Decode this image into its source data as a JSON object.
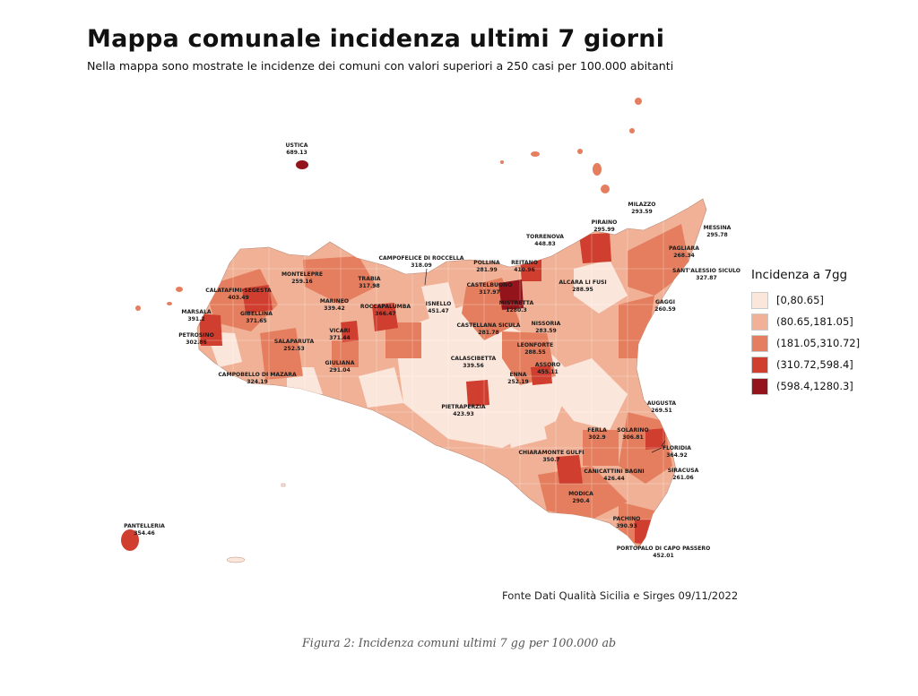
{
  "header": {
    "title": "Mappa comunale incidenza ultimi 7 giorni",
    "subtitle": "Nella mappa sono mostrate le incidenze dei comuni con valori superiori a 250 casi per 100.000 abitanti"
  },
  "legend": {
    "title": "Incidenza a 7gg",
    "classes": [
      {
        "label": "[0,80.65]",
        "color": "#fbe6dc"
      },
      {
        "label": "(80.65,181.05]",
        "color": "#f0b196"
      },
      {
        "label": "(181.05,310.72]",
        "color": "#e57e5e"
      },
      {
        "label": "(310.72,598.4]",
        "color": "#cf3e2e"
      },
      {
        "label": "(598.4,1280.3]",
        "color": "#93141a"
      }
    ]
  },
  "municipalities": [
    {
      "name": "USTICA",
      "value": "689.13"
    },
    {
      "name": "MILAZZO",
      "value": "293.59"
    },
    {
      "name": "PIRAINO",
      "value": "295.99"
    },
    {
      "name": "MESSINA",
      "value": "295.78"
    },
    {
      "name": "TORRENOVA",
      "value": "448.83"
    },
    {
      "name": "PAGLIARA",
      "value": "268.34"
    },
    {
      "name": "CAMPOFELICE DI ROCCELLA",
      "value": "318.09"
    },
    {
      "name": "POLLINA",
      "value": "281.99"
    },
    {
      "name": "REITANO",
      "value": "410.96"
    },
    {
      "name": "SANT'ALESSIO SICULO",
      "value": "327.87"
    },
    {
      "name": "MONTELEPRE",
      "value": "259.16"
    },
    {
      "name": "TRABIA",
      "value": "317.98"
    },
    {
      "name": "CASTELBUONO",
      "value": "317.97"
    },
    {
      "name": "ALCARA LI FUSI",
      "value": "288.95"
    },
    {
      "name": "CALATAFIMI-SEGESTA",
      "value": "403.49"
    },
    {
      "name": "MARINEO",
      "value": "339.42"
    },
    {
      "name": "ROCCAPALUMBA",
      "value": "366.47"
    },
    {
      "name": "ISNELLO",
      "value": "451.47"
    },
    {
      "name": "MISTRETTA",
      "value": "1280.3"
    },
    {
      "name": "GAGGI",
      "value": "260.59"
    },
    {
      "name": "MARSALA",
      "value": "391.2"
    },
    {
      "name": "GIBELLINA",
      "value": "371.65"
    },
    {
      "name": "VICARI",
      "value": "371.44"
    },
    {
      "name": "CASTELLANA SICULA",
      "value": "281.78"
    },
    {
      "name": "NISSORIA",
      "value": "283.59"
    },
    {
      "name": "PETROSINO",
      "value": "302.86"
    },
    {
      "name": "SALAPARUTA",
      "value": "252.53"
    },
    {
      "name": "LEONFORTE",
      "value": "288.55"
    },
    {
      "name": "CALASCIBETTA",
      "value": "339.56"
    },
    {
      "name": "ASSORO",
      "value": "455.11"
    },
    {
      "name": "GIULIANA",
      "value": "291.04"
    },
    {
      "name": "ENNA",
      "value": "252.19"
    },
    {
      "name": "CAMPOBELLO DI MAZARA",
      "value": "324.19"
    },
    {
      "name": "AUGUSTA",
      "value": "269.51"
    },
    {
      "name": "PIETRAPERZIA",
      "value": "423.93"
    },
    {
      "name": "FERLA",
      "value": "302.9"
    },
    {
      "name": "SOLARINO",
      "value": "306.81"
    },
    {
      "name": "FLORIDIA",
      "value": "364.92"
    },
    {
      "name": "CHIARAMONTE GULFI",
      "value": "350.7"
    },
    {
      "name": "SIRACUSA",
      "value": "261.06"
    },
    {
      "name": "CANICATTINI BAGNI",
      "value": "426.44"
    },
    {
      "name": "MODICA",
      "value": "290.4"
    },
    {
      "name": "PACHINO",
      "value": "390.93"
    },
    {
      "name": "PANTELLERIA",
      "value": "354.46"
    },
    {
      "name": "PORTOPALO DI CAPO PASSERO",
      "value": "452.01"
    }
  ],
  "source": "Fonte Dati Qualità Sicilia e Sirges 09/11/2022",
  "caption": "Figura 2: Incidenza comuni ultimi 7 gg per 100.000 ab"
}
